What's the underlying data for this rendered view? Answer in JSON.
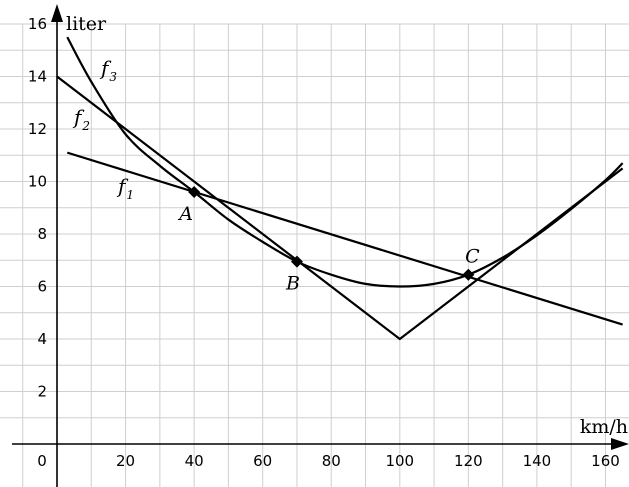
{
  "chart_data": {
    "type": "line",
    "ylabel": "liter",
    "xlabel": "km/h",
    "xlim": [
      -5,
      165
    ],
    "ylim": [
      -0.5,
      16
    ],
    "x_ticks": [
      0,
      20,
      40,
      60,
      80,
      100,
      120,
      140,
      160
    ],
    "y_ticks": [
      2,
      4,
      6,
      8,
      10,
      12,
      14,
      16
    ],
    "grid": true,
    "series": [
      {
        "name": "f",
        "sub": "1",
        "x": [
          3,
          165
        ],
        "y": [
          11.1,
          4.55
        ]
      },
      {
        "name": "f",
        "sub": "2",
        "x": [
          0,
          100,
          165
        ],
        "y": [
          14.0,
          4.0,
          10.5
        ]
      },
      {
        "name": "f",
        "sub": "3",
        "x": [
          3,
          10,
          20,
          30,
          40,
          50,
          60,
          70,
          80,
          90,
          100,
          110,
          120,
          130,
          140,
          150,
          160,
          165
        ],
        "y": [
          15.5,
          13.8,
          11.8,
          10.6,
          9.6,
          8.55,
          7.7,
          6.95,
          6.45,
          6.1,
          6.0,
          6.1,
          6.45,
          7.1,
          7.95,
          8.95,
          10.05,
          10.7
        ]
      }
    ],
    "points": [
      {
        "label": "A",
        "x": 40,
        "y": 9.6
      },
      {
        "label": "B",
        "x": 70,
        "y": 6.95
      },
      {
        "label": "C",
        "x": 120,
        "y": 6.45
      }
    ],
    "origin_label": "0"
  }
}
